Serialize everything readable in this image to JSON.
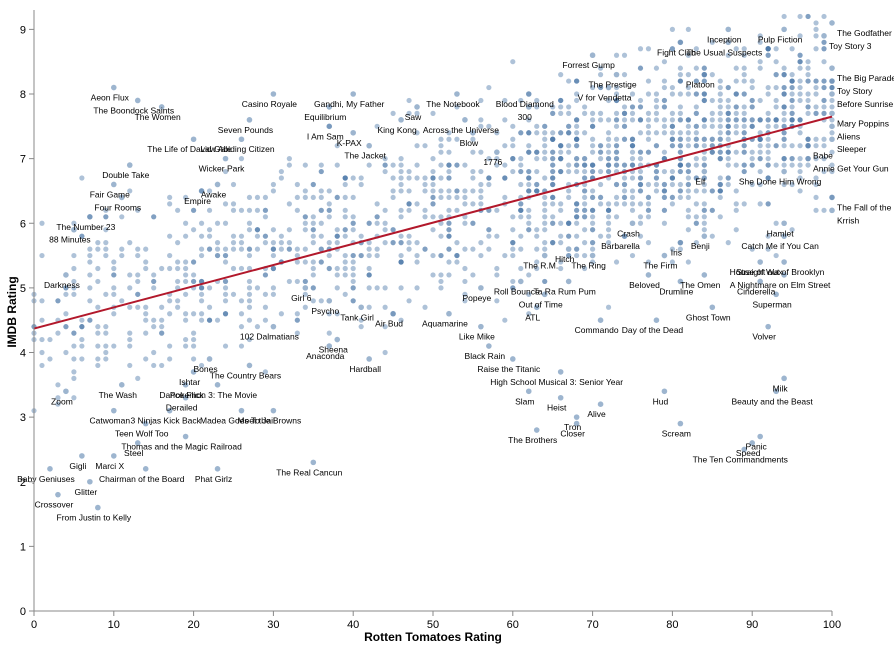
{
  "chart_data": {
    "type": "scatter",
    "title": "",
    "xlabel": "Rotten Tomatoes Rating",
    "ylabel": "IMDB Rating",
    "xlim": [
      0,
      100
    ],
    "ylim": [
      0,
      9.3
    ],
    "xticks": [
      0,
      10,
      20,
      30,
      40,
      50,
      60,
      70,
      80,
      90,
      100
    ],
    "yticks": [
      0,
      1,
      2,
      3,
      4,
      5,
      6,
      7,
      8,
      9
    ],
    "grid": false,
    "point_color": "#4c78a8",
    "trend_color": "#b2182b",
    "trend_line": [
      [
        0,
        4.37
      ],
      [
        100,
        7.65
      ]
    ],
    "labeled_points": [
      {
        "label": "Aeon Flux",
        "x": 10,
        "y": 8.1
      },
      {
        "label": "The Boondock Saints",
        "x": 13,
        "y": 7.9
      },
      {
        "label": "The Women",
        "x": 16,
        "y": 7.8
      },
      {
        "label": "Casino Royale",
        "x": 30,
        "y": 8.0
      },
      {
        "label": "Gandhi, My Father",
        "x": 40,
        "y": 8.0
      },
      {
        "label": "Seven Pounds",
        "x": 27,
        "y": 7.6
      },
      {
        "label": "Equilibrium",
        "x": 37,
        "y": 7.8
      },
      {
        "label": "I Am Sam",
        "x": 37,
        "y": 7.5
      },
      {
        "label": "The Notebook",
        "x": 53,
        "y": 8.0
      },
      {
        "label": "Blood Diamond",
        "x": 62,
        "y": 8.0
      },
      {
        "label": "Forrest Gump",
        "x": 70,
        "y": 8.6
      },
      {
        "label": "The Prestige",
        "x": 73,
        "y": 8.3
      },
      {
        "label": "V for Vendetta",
        "x": 72,
        "y": 8.1
      },
      {
        "label": "Fight Club",
        "x": 81,
        "y": 8.8
      },
      {
        "label": "Inception",
        "x": 87,
        "y": 9.0
      },
      {
        "label": "The Usual Suspects",
        "x": 87,
        "y": 8.8
      },
      {
        "label": "Pulp Fiction",
        "x": 94,
        "y": 9.0
      },
      {
        "label": "The Godfather",
        "x": 100,
        "y": 9.1
      },
      {
        "label": "Toy Story 3",
        "x": 99,
        "y": 8.9
      },
      {
        "label": "The Big Parade",
        "x": 100,
        "y": 8.4
      },
      {
        "label": "Platoon",
        "x": 84,
        "y": 8.3
      },
      {
        "label": "Toy Story",
        "x": 100,
        "y": 8.2
      },
      {
        "label": "Before Sunrise",
        "x": 100,
        "y": 8.0
      },
      {
        "label": "Mary Poppins",
        "x": 100,
        "y": 7.7
      },
      {
        "label": "Aliens",
        "x": 100,
        "y": 7.5
      },
      {
        "label": "Sleeper",
        "x": 100,
        "y": 7.3
      },
      {
        "label": "Babe",
        "x": 97,
        "y": 7.2
      },
      {
        "label": "Annie Get Your Gun",
        "x": 97,
        "y": 7.0
      },
      {
        "label": "She Done Him Wrong",
        "x": 94,
        "y": 6.8
      },
      {
        "label": "The Fall of the Roman Empire",
        "x": 100,
        "y": 6.4
      },
      {
        "label": "Krrish",
        "x": 100,
        "y": 6.2
      },
      {
        "label": "Hamlet",
        "x": 94,
        "y": 6.0
      },
      {
        "label": "Catch Me if You Can",
        "x": 94,
        "y": 5.8
      },
      {
        "label": "Straight out of Brooklyn",
        "x": 94,
        "y": 5.4
      },
      {
        "label": "A Nightmare on Elm Street",
        "x": 94,
        "y": 5.2
      },
      {
        "label": "House of Wax",
        "x": 91,
        "y": 5.4
      },
      {
        "label": "Cinderella",
        "x": 91,
        "y": 5.1
      },
      {
        "label": "Superman",
        "x": 93,
        "y": 4.9
      },
      {
        "label": "Volver",
        "x": 92,
        "y": 4.4
      },
      {
        "label": "Milk",
        "x": 94,
        "y": 3.6
      },
      {
        "label": "Beauty and the Beast",
        "x": 93,
        "y": 3.4
      },
      {
        "label": "Panic",
        "x": 91,
        "y": 2.7
      },
      {
        "label": "Speed",
        "x": 90,
        "y": 2.6
      },
      {
        "label": "The Ten Commandments",
        "x": 89,
        "y": 2.5
      },
      {
        "label": "Scream",
        "x": 81,
        "y": 2.9
      },
      {
        "label": "Hud",
        "x": 79,
        "y": 3.4
      },
      {
        "label": "Ghost Town",
        "x": 85,
        "y": 4.7
      },
      {
        "label": "The Omen",
        "x": 84,
        "y": 5.2
      },
      {
        "label": "Drumline",
        "x": 81,
        "y": 5.1
      },
      {
        "label": "Beloved",
        "x": 77,
        "y": 5.2
      },
      {
        "label": "The Firm",
        "x": 79,
        "y": 5.5
      },
      {
        "label": "Iris",
        "x": 81,
        "y": 5.7
      },
      {
        "label": "Benji",
        "x": 84,
        "y": 5.8
      },
      {
        "label": "Barbarella",
        "x": 74,
        "y": 5.8
      },
      {
        "label": "Crash",
        "x": 75,
        "y": 6.0
      },
      {
        "label": "Elf",
        "x": 84,
        "y": 6.8
      },
      {
        "label": "The Ring",
        "x": 70,
        "y": 5.5
      },
      {
        "label": "Hitch",
        "x": 67,
        "y": 5.6
      },
      {
        "label": "The R.M.",
        "x": 64,
        "y": 5.5
      },
      {
        "label": "Roll Bounce",
        "x": 61,
        "y": 5.1
      },
      {
        "label": "Ta Ra Rum Pum",
        "x": 67,
        "y": 5.1
      },
      {
        "label": "Out of Time",
        "x": 64,
        "y": 4.9
      },
      {
        "label": "ATL",
        "x": 63,
        "y": 4.7
      },
      {
        "label": "Commando",
        "x": 71,
        "y": 4.5
      },
      {
        "label": "Day of the Dead",
        "x": 78,
        "y": 4.5
      },
      {
        "label": "High School Musical 3: Senior Year",
        "x": 66,
        "y": 3.7
      },
      {
        "label": "Raise the Titanic",
        "x": 60,
        "y": 3.9
      },
      {
        "label": "Slam",
        "x": 62,
        "y": 3.4
      },
      {
        "label": "Heist",
        "x": 66,
        "y": 3.3
      },
      {
        "label": "Alive",
        "x": 71,
        "y": 3.2
      },
      {
        "label": "Tron",
        "x": 68,
        "y": 3.0
      },
      {
        "label": "The Brothers",
        "x": 63,
        "y": 2.8
      },
      {
        "label": "Closer",
        "x": 68,
        "y": 2.9
      },
      {
        "label": "Popeye",
        "x": 56,
        "y": 5.0
      },
      {
        "label": "Aquamarine",
        "x": 52,
        "y": 4.6
      },
      {
        "label": "Like Mike",
        "x": 56,
        "y": 4.4
      },
      {
        "label": "Black Rain",
        "x": 57,
        "y": 4.1
      },
      {
        "label": "Air Bud",
        "x": 45,
        "y": 4.6
      },
      {
        "label": "Tank Girl",
        "x": 41,
        "y": 4.7
      },
      {
        "label": "Psycho",
        "x": 37,
        "y": 4.8
      },
      {
        "label": "Girl 6",
        "x": 34,
        "y": 5.0
      },
      {
        "label": "102 Dalmatians",
        "x": 30,
        "y": 4.4
      },
      {
        "label": "Sheena",
        "x": 38,
        "y": 4.2
      },
      {
        "label": "Anaconda",
        "x": 37,
        "y": 4.1
      },
      {
        "label": "Hardball",
        "x": 42,
        "y": 3.9
      },
      {
        "label": "The Country Bears",
        "x": 27,
        "y": 3.8
      },
      {
        "label": "Bones",
        "x": 22,
        "y": 3.9
      },
      {
        "label": "Ishtar",
        "x": 20,
        "y": 3.7
      },
      {
        "label": "Dance Flick",
        "x": 19,
        "y": 3.5
      },
      {
        "label": "Pokemon 3: The Movie",
        "x": 23,
        "y": 3.5
      },
      {
        "label": "Derailed",
        "x": 19,
        "y": 3.3
      },
      {
        "label": "Meet the Browns",
        "x": 30,
        "y": 3.1
      },
      {
        "label": "Madea Goes To Jail",
        "x": 26,
        "y": 3.1
      },
      {
        "label": "3 Ninjas Kick Back",
        "x": 17,
        "y": 3.1
      },
      {
        "label": "Catwoman",
        "x": 10,
        "y": 3.1
      },
      {
        "label": "The Wash",
        "x": 11,
        "y": 3.5
      },
      {
        "label": "Zoom",
        "x": 4,
        "y": 3.4
      },
      {
        "label": "Teen Wolf Too",
        "x": 14,
        "y": 2.9
      },
      {
        "label": "Thomas and the Magic Railroad",
        "x": 19,
        "y": 2.7
      },
      {
        "label": "Steel",
        "x": 13,
        "y": 2.6
      },
      {
        "label": "Gigli",
        "x": 6,
        "y": 2.4
      },
      {
        "label": "Marci X",
        "x": 10,
        "y": 2.4
      },
      {
        "label": "Baby Geniuses",
        "x": 2,
        "y": 2.2
      },
      {
        "label": "Chairman of the Board",
        "x": 14,
        "y": 2.2
      },
      {
        "label": "Phat Girlz",
        "x": 23,
        "y": 2.2
      },
      {
        "label": "The Real Cancun",
        "x": 35,
        "y": 2.3
      },
      {
        "label": "Glitter",
        "x": 7,
        "y": 2.0
      },
      {
        "label": "Crossover",
        "x": 3,
        "y": 1.8
      },
      {
        "label": "From Justin to Kelly",
        "x": 8,
        "y": 1.6
      },
      {
        "label": "Darkness",
        "x": 4,
        "y": 5.2
      },
      {
        "label": "88 Minutes",
        "x": 5,
        "y": 5.9
      },
      {
        "label": "The Number 23",
        "x": 7,
        "y": 6.1
      },
      {
        "label": "Four Rooms",
        "x": 11,
        "y": 6.4
      },
      {
        "label": "Fair Game",
        "x": 10,
        "y": 6.6
      },
      {
        "label": "Double Take",
        "x": 12,
        "y": 6.9
      },
      {
        "label": "The Life of David Gale",
        "x": 20,
        "y": 7.3
      },
      {
        "label": "Law Abiding Citizen",
        "x": 26,
        "y": 7.3
      },
      {
        "label": "Wicker Park",
        "x": 24,
        "y": 7.0
      },
      {
        "label": "Awake",
        "x": 23,
        "y": 6.6
      },
      {
        "label": "Empire",
        "x": 21,
        "y": 6.5
      },
      {
        "label": "K-PAX",
        "x": 40,
        "y": 7.4
      },
      {
        "label": "The Jacket",
        "x": 42,
        "y": 7.2
      },
      {
        "label": "King Kong",
        "x": 46,
        "y": 7.6
      },
      {
        "label": "Saw",
        "x": 48,
        "y": 7.8
      },
      {
        "label": "Across the Universe",
        "x": 54,
        "y": 7.6
      },
      {
        "label": "Blow",
        "x": 55,
        "y": 7.4
      },
      {
        "label": "1776",
        "x": 58,
        "y": 7.1
      },
      {
        "label": "300",
        "x": 62,
        "y": 7.8
      }
    ]
  }
}
